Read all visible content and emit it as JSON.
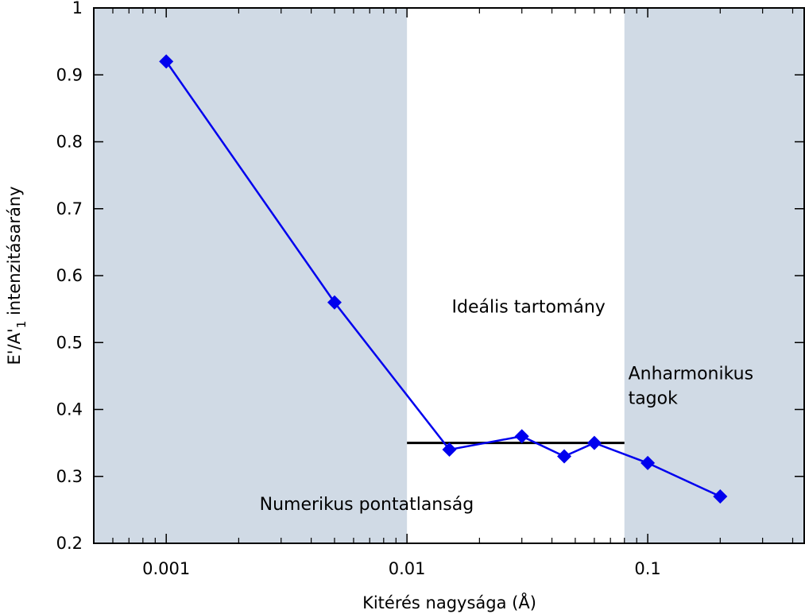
{
  "chart_data": {
    "type": "line",
    "xscale": "log",
    "xlim": [
      0.0005,
      0.45
    ],
    "ylim": [
      0.2,
      1.0
    ],
    "xlabel": "Kitérés nagysága (Å)",
    "ylabel_main": "E'/A'",
    "ylabel_sub": "1",
    "ylabel_rest": " intenzitásarány",
    "x_ticks": [
      {
        "value": 0.001,
        "label": "0.001"
      },
      {
        "value": 0.01,
        "label": "0.01"
      },
      {
        "value": 0.1,
        "label": "0.1"
      }
    ],
    "y_ticks": [
      {
        "value": 0.2,
        "label": "0.2"
      },
      {
        "value": 0.3,
        "label": "0.3"
      },
      {
        "value": 0.4,
        "label": "0.4"
      },
      {
        "value": 0.5,
        "label": "0.5"
      },
      {
        "value": 0.6,
        "label": "0.6"
      },
      {
        "value": 0.7,
        "label": "0.7"
      },
      {
        "value": 0.8,
        "label": "0.8"
      },
      {
        "value": 0.9,
        "label": "0.9"
      },
      {
        "value": 1.0,
        "label": "1"
      }
    ],
    "series": [
      {
        "color": "#0000ee",
        "marker": "diamond",
        "x": [
          0.001,
          0.005,
          0.015,
          0.03,
          0.045,
          0.06,
          0.1,
          0.2
        ],
        "y": [
          0.92,
          0.56,
          0.34,
          0.36,
          0.33,
          0.35,
          0.32,
          0.27
        ]
      }
    ],
    "reference_line": {
      "x_start": 0.01,
      "x_end": 0.08,
      "y": 0.35,
      "color": "#000000"
    },
    "regions": [
      {
        "x_start": 0.0005,
        "x_end": 0.01,
        "color": "#d0dae5"
      },
      {
        "x_start": 0.08,
        "x_end": 0.45,
        "color": "#d0dae5"
      }
    ],
    "annotations": [
      {
        "lines": [
          "Numerikus pontatlanság"
        ],
        "x": 0.0068,
        "y": 0.25
      },
      {
        "lines": [
          "Ideális tartomány"
        ],
        "x": 0.032,
        "y": 0.545
      },
      {
        "lines": [
          "Anharmonikus",
          "tagok"
        ],
        "x": 0.083,
        "y": 0.445
      }
    ]
  }
}
